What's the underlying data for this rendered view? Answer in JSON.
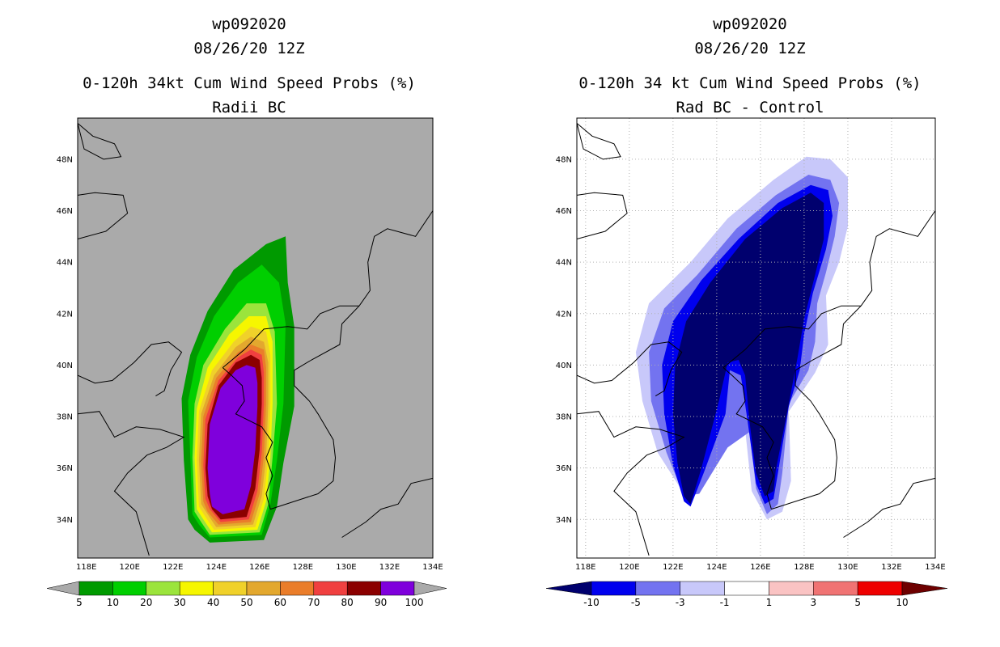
{
  "chart_data": [
    {
      "type": "contour-map",
      "storm": "wp092020",
      "time": "08/26/20 12Z",
      "title": "0-120h 34kt Cum Wind Speed Probs (%)",
      "subtitle": "Radii BC",
      "background_color": "#aaaaaa",
      "x_ticks": [
        "118E",
        "120E",
        "122E",
        "124E",
        "126E",
        "128E",
        "130E",
        "132E",
        "134E"
      ],
      "x_tick_values": [
        118,
        120,
        122,
        124,
        126,
        128,
        130,
        132,
        134
      ],
      "y_ticks": [
        "34N",
        "36N",
        "38N",
        "40N",
        "42N",
        "44N",
        "46N",
        "48N"
      ],
      "y_tick_values": [
        34,
        36,
        38,
        40,
        42,
        44,
        46,
        48
      ],
      "xlim": [
        117.6,
        134
      ],
      "ylim": [
        32.5,
        49.6
      ],
      "colorbar": {
        "labels": [
          "5",
          "10",
          "20",
          "30",
          "40",
          "50",
          "60",
          "70",
          "80",
          "90",
          "100"
        ],
        "colors": [
          "#009a00",
          "#00cf00",
          "#9be43c",
          "#f6f600",
          "#f0d12a",
          "#e3a82e",
          "#ea7d2a",
          "#f04040",
          "#8b0000",
          "#7f00dc"
        ],
        "under_color": "#aaaaaa",
        "over_color": "#aaaaaa"
      }
    },
    {
      "type": "contour-map",
      "storm": "wp092020",
      "time": "08/26/20 12Z",
      "title": "0-120h 34 kt Cum Wind Speed Probs (%)",
      "subtitle": "Rad BC - Control",
      "background_color": "#ffffff",
      "x_ticks": [
        "118E",
        "120E",
        "122E",
        "124E",
        "126E",
        "128E",
        "130E",
        "132E",
        "134E"
      ],
      "x_tick_values": [
        118,
        120,
        122,
        124,
        126,
        128,
        130,
        132,
        134
      ],
      "y_ticks": [
        "34N",
        "36N",
        "38N",
        "40N",
        "42N",
        "44N",
        "46N",
        "48N"
      ],
      "y_tick_values": [
        34,
        36,
        38,
        40,
        42,
        44,
        46,
        48
      ],
      "xlim": [
        117.6,
        134
      ],
      "ylim": [
        32.5,
        49.6
      ],
      "colorbar": {
        "labels": [
          "-10",
          "-5",
          "-3",
          "-1",
          "1",
          "3",
          "5",
          "10"
        ],
        "colors": [
          "#0000ee",
          "#7373f0",
          "#c8c8fa",
          "#ffffff",
          "#fac3c3",
          "#f07373",
          "#ee0000"
        ],
        "under_color": "#00006e",
        "over_color": "#6e0000"
      }
    }
  ]
}
